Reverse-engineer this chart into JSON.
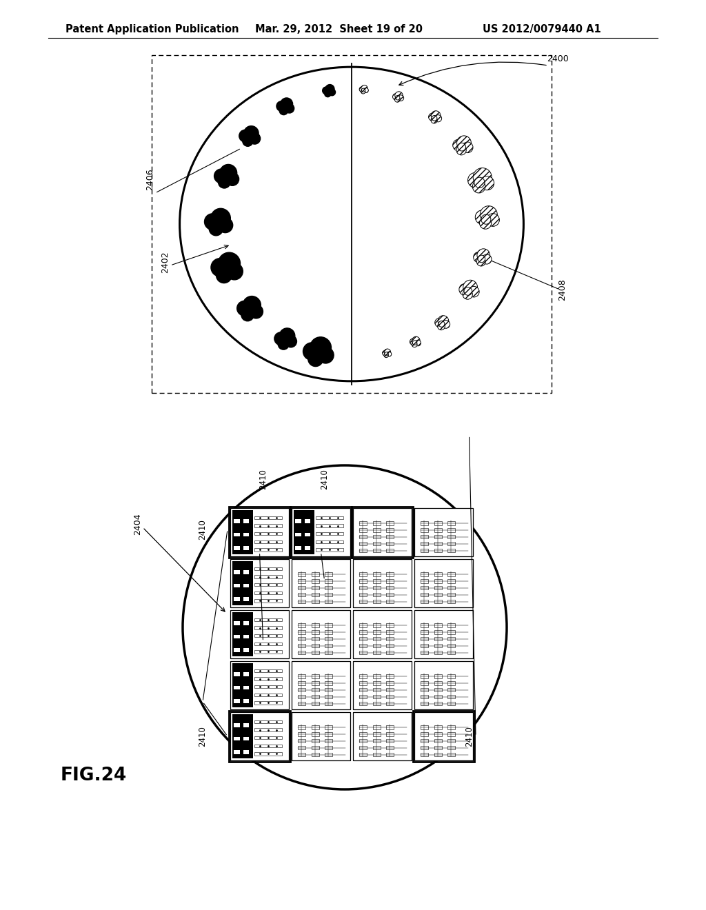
{
  "header_left": "Patent Application Publication",
  "header_center": "Mar. 29, 2012  Sheet 19 of 20",
  "header_right": "US 2012/0079440 A1",
  "figure_label": "FIG.24",
  "bg_color": "#ffffff"
}
